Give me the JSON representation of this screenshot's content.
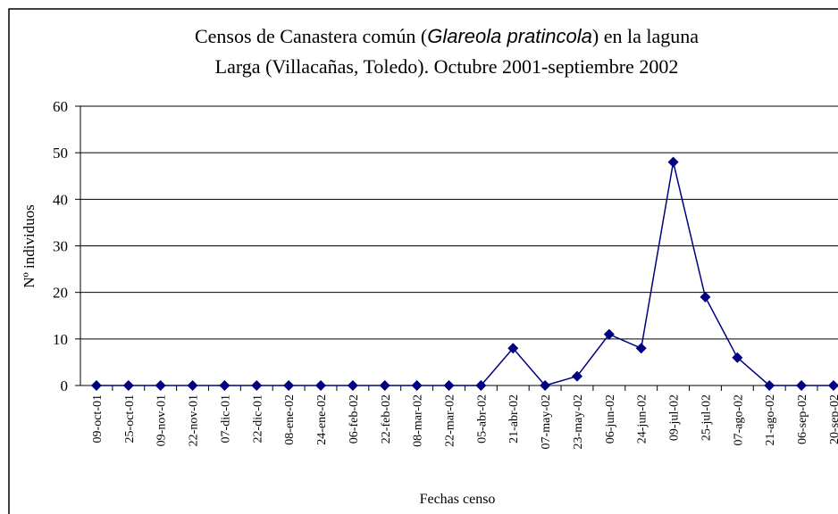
{
  "chart_data": {
    "type": "line",
    "title": [
      "Censos de Canastera común (",
      "Glareola pratincola",
      ") en la laguna",
      "Larga (Villacañas, Toledo). Octubre 2001-septiembre 2002"
    ],
    "x_label": "Fechas censo",
    "y_label": "Nº individuos",
    "categories": [
      "09-oct-01",
      "25-oct-01",
      "09-nov-01",
      "22-nov-01",
      "07-dic-01",
      "22-dic-01",
      "08-ene-02",
      "24-ene-02",
      "06-feb-02",
      "22-feb-02",
      "08-mar-02",
      "22-mar-02",
      "05-abr-02",
      "21-abr-02",
      "07-may-02",
      "23-may-02",
      "06-jun-02",
      "24-jun-02",
      "09-jul-02",
      "25-jul-02",
      "07-ago-02",
      "21-ago-02",
      "06-sep-02",
      "20-sep-02"
    ],
    "series": [
      {
        "name": "Nº individuos",
        "color": "#000080",
        "values": [
          0,
          0,
          0,
          0,
          0,
          0,
          0,
          0,
          0,
          0,
          0,
          0,
          0,
          8,
          0,
          2,
          11,
          8,
          48,
          19,
          6,
          0,
          0,
          0
        ]
      }
    ],
    "ylim": [
      0,
      60
    ],
    "yticks": [
      0,
      10,
      20,
      30,
      40,
      50,
      60
    ],
    "grid": true
  }
}
